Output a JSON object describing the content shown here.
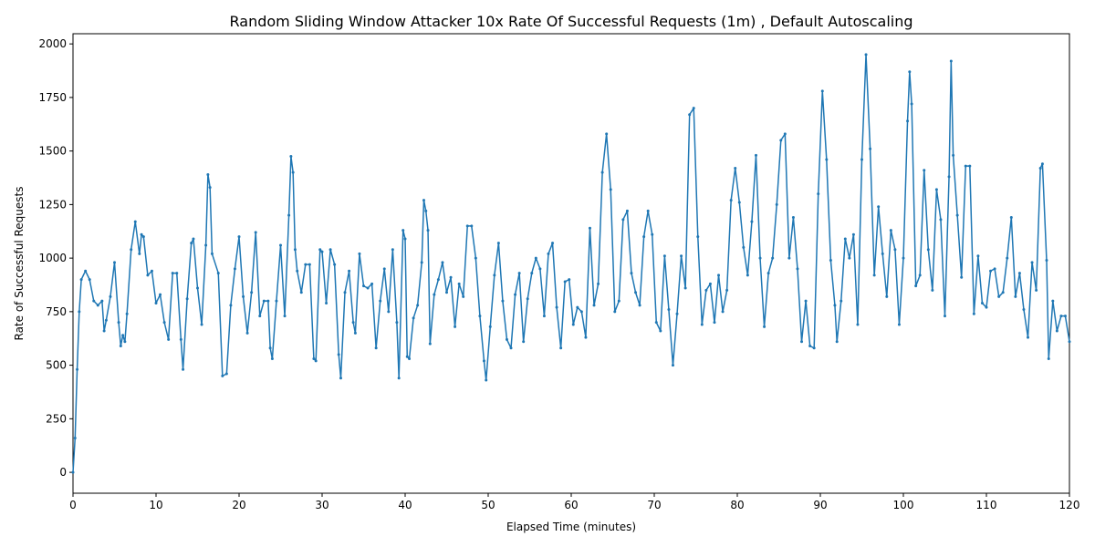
{
  "chart_data": {
    "type": "line",
    "title": "Random Sliding Window Attacker 10x Rate Of Successful Requests (1m) , Default Autoscaling",
    "x_label": "Elapsed Time (minutes)",
    "y_label": "Rate of Successful Requests",
    "xlim": [
      0,
      120
    ],
    "ylim": [
      -97.5,
      2047.5
    ],
    "xticks": [
      0,
      10,
      20,
      30,
      40,
      50,
      60,
      70,
      80,
      90,
      100,
      110,
      120
    ],
    "yticks": [
      0,
      250,
      500,
      750,
      1000,
      1250,
      1500,
      1750,
      2000
    ],
    "grid": false,
    "x": [
      0,
      0.25,
      0.5,
      0.75,
      1,
      1.5,
      2,
      2.5,
      3,
      3.5,
      3.75,
      4,
      4.5,
      5,
      5.5,
      5.75,
      6,
      6.25,
      6.5,
      7,
      7.5,
      8,
      8.25,
      8.5,
      9,
      9.5,
      10,
      10.5,
      11,
      11.5,
      12,
      12.5,
      13,
      13.25,
      13.75,
      14.25,
      14.5,
      15,
      15.5,
      16,
      16.25,
      16.5,
      16.75,
      17.5,
      18,
      18.5,
      19,
      19.5,
      20,
      20.5,
      21,
      21.5,
      22,
      22.5,
      23,
      23.5,
      23.75,
      24,
      24.5,
      25,
      25.5,
      26,
      26.25,
      26.5,
      26.75,
      27,
      27.5,
      28,
      28.5,
      29,
      29.25,
      29.75,
      30,
      30.5,
      31,
      31.5,
      32,
      32.25,
      32.75,
      33.25,
      33.75,
      34,
      34.5,
      35,
      35.5,
      36,
      36.5,
      37,
      37.5,
      38,
      38.5,
      39,
      39.25,
      39.75,
      40,
      40.25,
      40.5,
      41,
      41.5,
      42,
      42.25,
      42.5,
      42.75,
      43,
      43.5,
      44,
      44.5,
      45,
      45.5,
      46,
      46.5,
      47,
      47.5,
      48,
      48.5,
      49,
      49.5,
      49.75,
      50.25,
      50.75,
      51.25,
      51.75,
      52.25,
      52.75,
      53.25,
      53.75,
      54.25,
      54.75,
      55.25,
      55.75,
      56.25,
      56.75,
      57.25,
      57.75,
      58.25,
      58.75,
      59.25,
      59.75,
      60.25,
      60.75,
      61.25,
      61.75,
      62.25,
      62.75,
      63.25,
      63.75,
      64.25,
      64.75,
      65.25,
      65.75,
      66.25,
      66.75,
      67.25,
      67.75,
      68.25,
      68.75,
      69.25,
      69.75,
      70.25,
      70.75,
      71.25,
      71.75,
      72.25,
      72.75,
      73.25,
      73.75,
      74.25,
      74.75,
      75.25,
      75.75,
      76.25,
      76.75,
      77.25,
      77.75,
      78.25,
      78.75,
      79.25,
      79.75,
      80.25,
      80.75,
      81.25,
      81.75,
      82.25,
      82.75,
      83.25,
      83.75,
      84.25,
      84.75,
      85.25,
      85.75,
      86.25,
      86.75,
      87.25,
      87.75,
      88.25,
      88.75,
      89.25,
      89.75,
      90.25,
      90.75,
      91.25,
      91.75,
      92,
      92.5,
      93,
      93.5,
      94,
      94.5,
      95,
      95.5,
      96,
      96.5,
      97,
      97.5,
      98,
      98.5,
      99,
      99.5,
      100,
      100.5,
      100.75,
      101,
      101.5,
      102,
      102.5,
      103,
      103.5,
      104,
      104.5,
      105,
      105.5,
      105.75,
      106,
      106.5,
      107,
      107.5,
      108,
      108.5,
      109,
      109.5,
      110,
      110.5,
      111,
      111.5,
      112,
      112.5,
      113,
      113.5,
      114,
      114.5,
      115,
      115.5,
      116,
      116.5,
      116.75,
      117.25,
      117.5,
      118,
      118.5,
      119,
      119.5,
      120
    ],
    "series": [
      {
        "color": "#1f77b4",
        "values": [
          0,
          160,
          480,
          750,
          900,
          940,
          900,
          800,
          780,
          800,
          660,
          710,
          820,
          980,
          700,
          590,
          640,
          610,
          740,
          1040,
          1170,
          1020,
          1110,
          1100,
          920,
          940,
          790,
          830,
          700,
          620,
          930,
          930,
          620,
          480,
          810,
          1070,
          1090,
          860,
          690,
          1060,
          1390,
          1330,
          1020,
          930,
          450,
          460,
          780,
          950,
          1100,
          820,
          650,
          840,
          1120,
          730,
          800,
          800,
          580,
          530,
          800,
          1060,
          730,
          1200,
          1475,
          1400,
          1040,
          940,
          840,
          970,
          970,
          530,
          520,
          1040,
          1030,
          790,
          1040,
          970,
          550,
          440,
          840,
          940,
          700,
          650,
          1020,
          870,
          860,
          880,
          580,
          800,
          950,
          750,
          1040,
          700,
          440,
          1130,
          1090,
          540,
          530,
          720,
          780,
          980,
          1270,
          1220,
          1130,
          600,
          830,
          900,
          980,
          840,
          910,
          680,
          880,
          820,
          1150,
          1150,
          1000,
          730,
          520,
          430,
          680,
          920,
          1070,
          800,
          620,
          580,
          830,
          930,
          610,
          810,
          930,
          1000,
          950,
          730,
          1020,
          1070,
          770,
          580,
          890,
          900,
          690,
          770,
          750,
          630,
          1140,
          780,
          880,
          1400,
          1580,
          1320,
          750,
          800,
          1180,
          1220,
          930,
          840,
          780,
          1100,
          1220,
          1110,
          700,
          660,
          1010,
          760,
          500,
          740,
          1010,
          860,
          1670,
          1700,
          1100,
          690,
          850,
          880,
          700,
          920,
          750,
          850,
          1270,
          1420,
          1260,
          1050,
          920,
          1170,
          1480,
          1000,
          680,
          930,
          1000,
          1250,
          1550,
          1580,
          1000,
          1190,
          950,
          610,
          800,
          590,
          580,
          1300,
          1780,
          1460,
          990,
          780,
          610,
          800,
          1090,
          1000,
          1110,
          690,
          1460,
          1950,
          1510,
          920,
          1240,
          1020,
          820,
          1130,
          1040,
          690,
          1000,
          1640,
          1870,
          1720,
          870,
          920,
          1410,
          1040,
          850,
          1320,
          1180,
          730,
          1380,
          1920,
          1480,
          1200,
          910,
          1430,
          1430,
          740,
          1010,
          790,
          770,
          940,
          950,
          820,
          840,
          1000,
          1190,
          820,
          930,
          760,
          630,
          980,
          850,
          1420,
          1440,
          990,
          530,
          800,
          660,
          730,
          730,
          610
        ]
      }
    ]
  }
}
